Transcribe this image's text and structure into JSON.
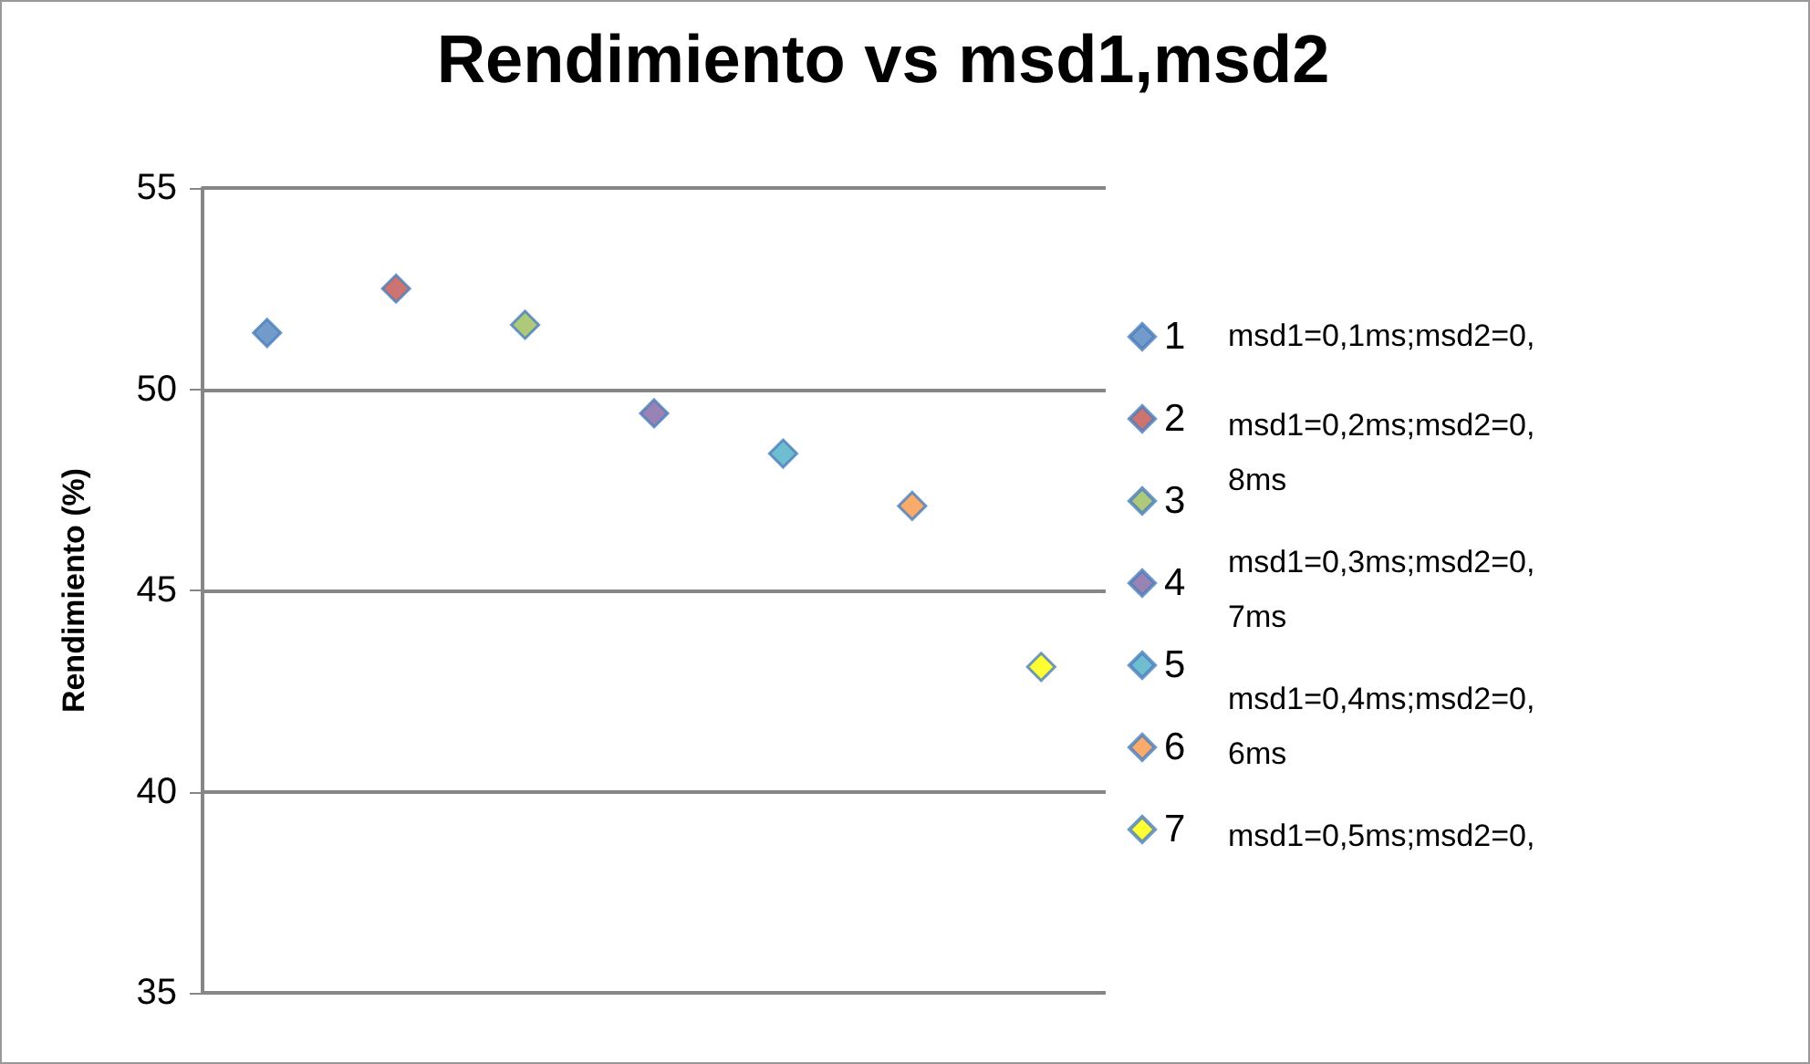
{
  "chart_data": {
    "type": "scatter",
    "title": "Rendimiento vs msd1,msd2",
    "ylabel": "Rendimiento (%)",
    "categories": [
      null,
      null,
      null,
      null,
      null,
      null,
      null
    ],
    "ylim": [
      35,
      55
    ],
    "yticks": [
      35,
      40,
      45,
      50,
      55
    ],
    "tick_labels": "y",
    "grid": "y",
    "legend": "right",
    "marker": "diamond",
    "series": [
      {
        "name": "1",
        "color": "#4f81bd",
        "values": [
          51.4,
          null,
          null,
          null,
          null,
          null,
          null
        ]
      },
      {
        "name": "2",
        "color": "#c0504d",
        "values": [
          null,
          52.5,
          null,
          null,
          null,
          null,
          null
        ]
      },
      {
        "name": "3",
        "color": "#9bbb59",
        "values": [
          null,
          null,
          51.6,
          null,
          null,
          null,
          null
        ]
      },
      {
        "name": "4",
        "color": "#8064a2",
        "values": [
          null,
          null,
          null,
          49.4,
          null,
          null,
          null
        ]
      },
      {
        "name": "5",
        "color": "#4bacc6",
        "values": [
          null,
          null,
          null,
          null,
          48.4,
          null,
          null
        ]
      },
      {
        "name": "6",
        "color": "#f79646",
        "values": [
          null,
          null,
          null,
          null,
          null,
          47.1,
          null
        ]
      },
      {
        "name": "7",
        "color": "#ffff00",
        "values": [
          null,
          null,
          null,
          null,
          null,
          null,
          43.1
        ]
      }
    ],
    "annotations": [
      "msd1=0,1ms;msd2=0,",
      "msd1=0,2ms;msd2=0, 8ms",
      "msd1=0,3ms;msd2=0, 7ms",
      "msd1=0,4ms;msd2=0, 6ms",
      "msd1=0,5ms;msd2=0,"
    ]
  }
}
